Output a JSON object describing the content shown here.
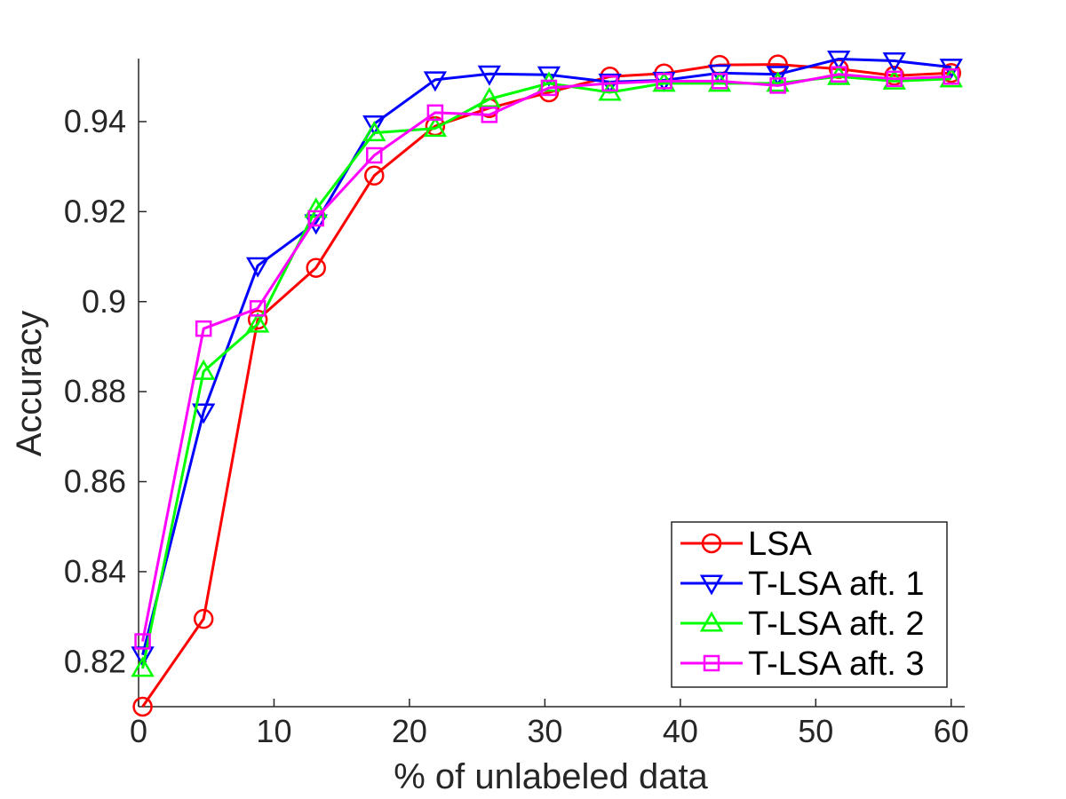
{
  "chart_data": {
    "type": "line",
    "title": "",
    "xlabel": "% of unlabeled data",
    "ylabel": "Accuracy",
    "xlim": [
      0,
      61
    ],
    "ylim": [
      0.81,
      0.954
    ],
    "xticks": [
      0,
      10,
      20,
      30,
      40,
      50,
      60
    ],
    "xtick_labels": [
      "0",
      "10",
      "20",
      "30",
      "40",
      "50",
      "60"
    ],
    "yticks": [
      0.82,
      0.84,
      0.86,
      0.88,
      0.9,
      0.92,
      0.94
    ],
    "ytick_labels": [
      "0.82",
      "0.84",
      "0.86",
      "0.88",
      "0.9",
      "0.92",
      "0.94"
    ],
    "grid": false,
    "legend_position": "bottom-right",
    "x": [
      0.3,
      4.8,
      8.8,
      13.1,
      17.4,
      21.9,
      25.9,
      30.3,
      34.8,
      38.8,
      42.9,
      47.2,
      51.7,
      55.8,
      60.0
    ],
    "series": [
      {
        "name": "LSA",
        "color": "#ff0000",
        "marker": "circle",
        "values": [
          0.81,
          0.8295,
          0.896,
          0.9075,
          0.928,
          0.939,
          0.943,
          0.9465,
          0.95,
          0.9507,
          0.9526,
          0.9527,
          0.9517,
          0.9502,
          0.9508
        ]
      },
      {
        "name": "T-LSA aft. 1",
        "color": "#0000ff",
        "marker": "triangle-down",
        "values": [
          0.8215,
          0.8755,
          0.908,
          0.9175,
          0.9395,
          0.9493,
          0.9506,
          0.9504,
          0.9488,
          0.9492,
          0.9508,
          0.9505,
          0.9539,
          0.9535,
          0.9521
        ]
      },
      {
        "name": "T-LSA aft. 2",
        "color": "#00ff00",
        "marker": "triangle-up",
        "values": [
          0.8185,
          0.8845,
          0.895,
          0.9205,
          0.9375,
          0.9385,
          0.945,
          0.9485,
          0.9465,
          0.9485,
          0.9485,
          0.9485,
          0.95,
          0.949,
          0.9495
        ]
      },
      {
        "name": "T-LSA aft. 3",
        "color": "#ff00ff",
        "marker": "square",
        "values": [
          0.8245,
          0.894,
          0.8985,
          0.9185,
          0.9325,
          0.942,
          0.9415,
          0.9475,
          0.9485,
          0.949,
          0.949,
          0.948,
          0.9505,
          0.9495,
          0.95
        ]
      }
    ]
  }
}
